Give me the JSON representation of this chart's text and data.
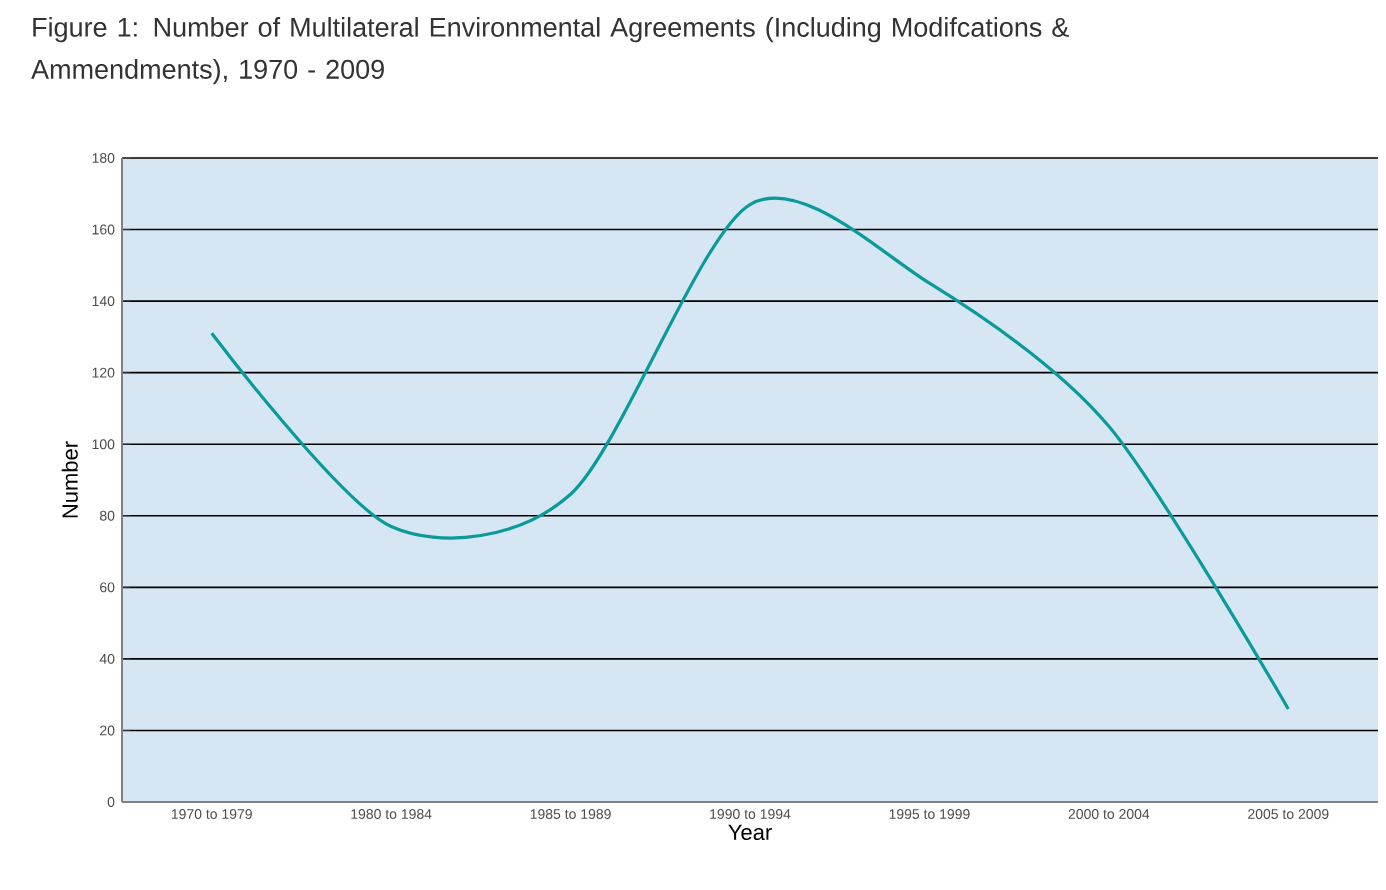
{
  "chart_data": {
    "type": "line",
    "title": "Figure 1: Number of Multilateral Environmental Agreements (Including Modifcations & Ammendments), 1970 - 2009",
    "xlabel": "Year",
    "ylabel": "Number",
    "categories": [
      "1970 to 1979",
      "1980 to 1984",
      "1985 to 1989",
      "1990 to 1994",
      "1995 to 1999",
      "2000 to 2004",
      "2005 to 2009"
    ],
    "series": [
      {
        "color": "#0a9a9a",
        "values": [
          131,
          77,
          86,
          167,
          145,
          105,
          26
        ]
      }
    ],
    "ylim": [
      0,
      180
    ],
    "yticks": [
      0,
      20,
      40,
      60,
      80,
      100,
      120,
      140,
      160,
      180
    ],
    "grid": "y",
    "marker": "none",
    "line_style": "solid"
  }
}
